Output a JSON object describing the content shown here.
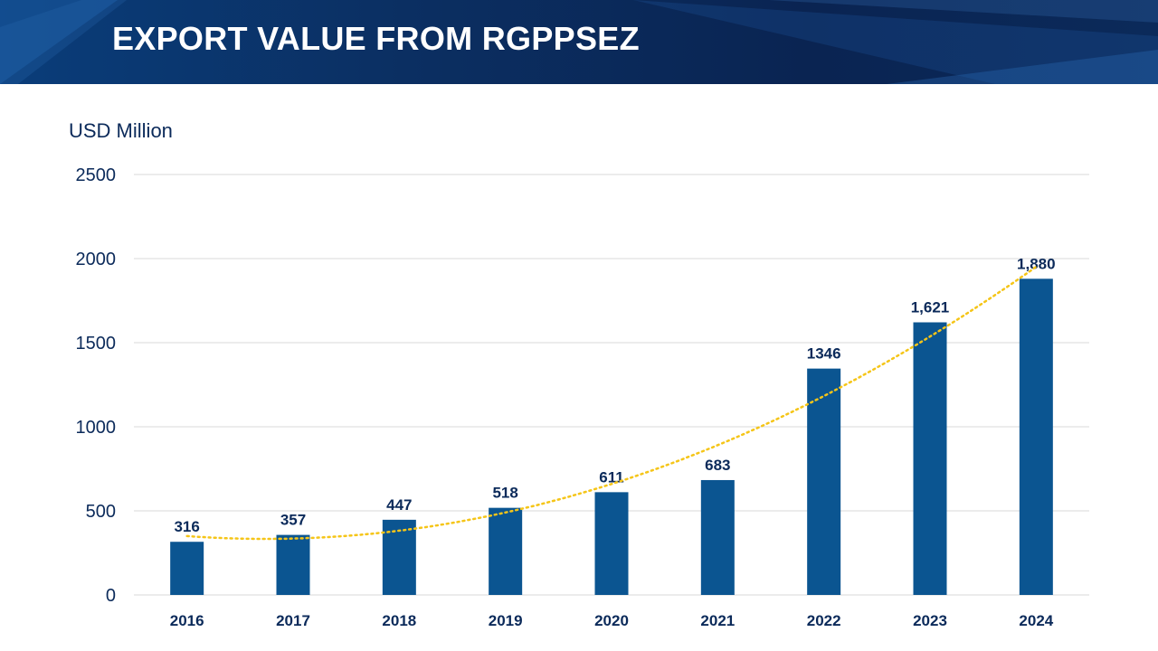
{
  "header": {
    "title": "EXPORT VALUE FROM RGPPSEZ"
  },
  "colors": {
    "header_bg": "#0b2f62",
    "bar": "#0b5591",
    "trendline": "#f5c518",
    "text": "#0b2a5a",
    "grid": "#d9d9d9"
  },
  "chart_data": {
    "type": "bar",
    "ylabel": "USD Million",
    "categories": [
      "2016",
      "2017",
      "2018",
      "2019",
      "2020",
      "2021",
      "2022",
      "2023",
      "2024"
    ],
    "values": [
      316,
      357,
      447,
      518,
      611,
      683,
      1346,
      1621,
      1880
    ],
    "data_labels": [
      "316",
      "357",
      "447",
      "518",
      "611",
      "683",
      "1346",
      "1,621",
      "1,880"
    ],
    "ylim": [
      0,
      2500
    ],
    "yticks": [
      0,
      500,
      1000,
      1500,
      2000,
      2500
    ],
    "grid": true,
    "trendline": "polynomial (dotted)"
  }
}
